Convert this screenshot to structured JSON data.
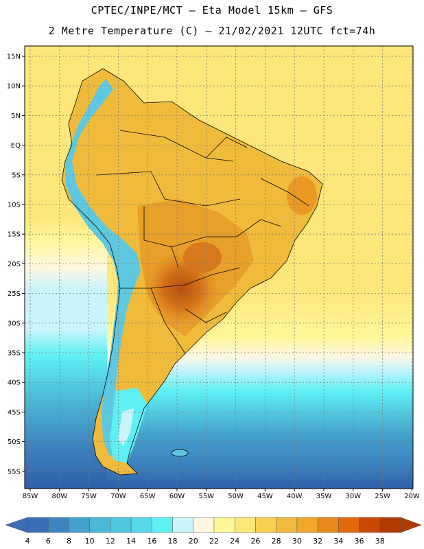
{
  "title": {
    "line1": "CPTEC/INPE/MCT –  Eta Model 15km – GFS",
    "line2": "2 Metre Temperature (C) – 21/02/2021 12UTC fct=74h"
  },
  "lat_labels": [
    "15N",
    "10N",
    "5N",
    "EQ",
    "5S",
    "10S",
    "15S",
    "20S",
    "25S",
    "30S",
    "35S",
    "40S",
    "45S",
    "50S",
    "55S"
  ],
  "lon_labels": [
    "85W",
    "80W",
    "75W",
    "70W",
    "65W",
    "60W",
    "55W",
    "50W",
    "45W",
    "40W",
    "35W",
    "30W",
    "25W",
    "20W"
  ],
  "colorbar": {
    "labels": [
      "4",
      "6",
      "8",
      "10",
      "12",
      "14",
      "16",
      "18",
      "20",
      "22",
      "24",
      "26",
      "28",
      "30",
      "32",
      "34",
      "36",
      "38"
    ],
    "colors": [
      "#3a6fb5",
      "#3d85c0",
      "#45a0cc",
      "#4db8d6",
      "#52c8de",
      "#56d8e8",
      "#5ef0f4",
      "#c8f4fa",
      "#fff7e0",
      "#fff79a",
      "#fde67a",
      "#f7d050",
      "#f0bb3a",
      "#f0a82a",
      "#e88a1a",
      "#e06a0c",
      "#c84a06",
      "#b03a00"
    ]
  },
  "map": {
    "colors": {
      "ocean_warm": "#fde67a",
      "ocean_mid": "#fff79a",
      "cream": "#fff7e0",
      "land": "#f0bb3a",
      "land_hot": "#e88a1a",
      "land_hottest": "#c8550c",
      "andes_cold": "#5ec8e0",
      "andes_mid": "#56d8e8",
      "south_cold1": "#5ef0f4",
      "south_cold2": "#4db8d6",
      "south_cold3": "#3d85c0",
      "south_cold4": "#2f5fa8",
      "grid": "#7a7a7a"
    }
  }
}
